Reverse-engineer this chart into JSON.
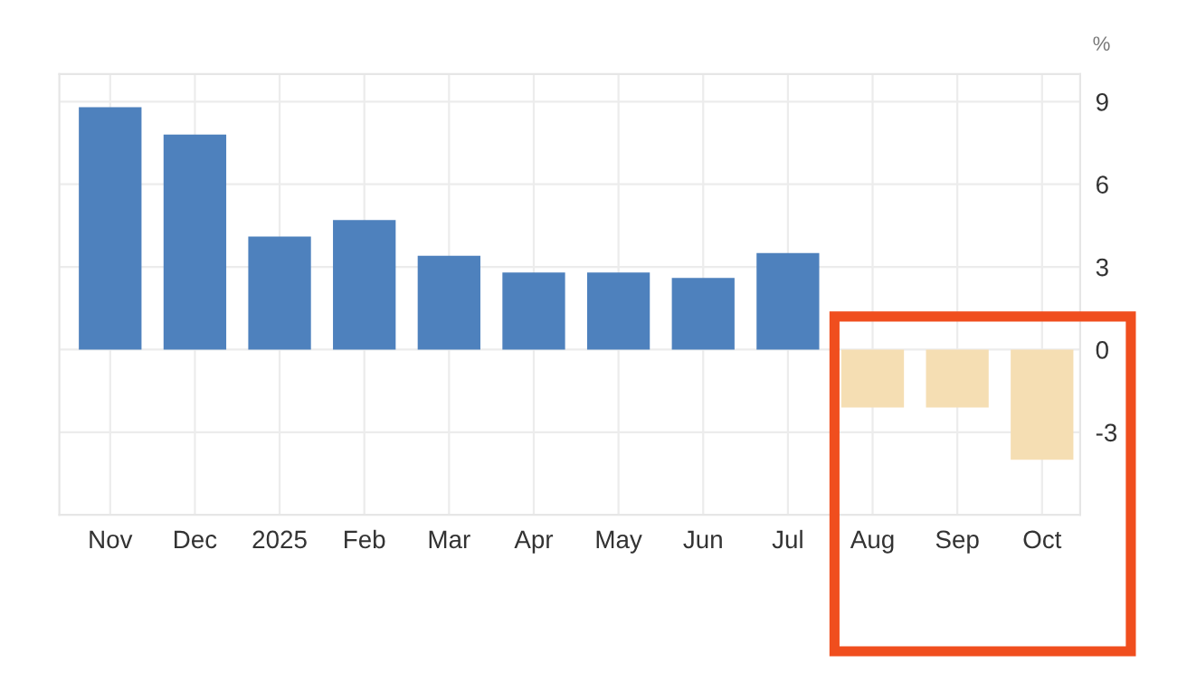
{
  "chart_data": {
    "type": "bar",
    "ylabel": "%",
    "categories": [
      "Nov",
      "Dec",
      "2025",
      "Feb",
      "Mar",
      "Apr",
      "May",
      "Jun",
      "Jul",
      "Aug",
      "Sep",
      "Oct"
    ],
    "values": [
      8.8,
      7.8,
      4.1,
      4.7,
      3.4,
      2.8,
      2.8,
      2.6,
      3.5,
      -2.1,
      -2.1,
      -4.0
    ],
    "colors": [
      "#4e81bd",
      "#4e81bd",
      "#4e81bd",
      "#4e81bd",
      "#4e81bd",
      "#4e81bd",
      "#4e81bd",
      "#4e81bd",
      "#4e81bd",
      "#f5deb3",
      "#f5deb3",
      "#f5deb3"
    ],
    "ylim": [
      -6,
      10
    ],
    "yticks": [
      {
        "value": -3,
        "label": "-3"
      },
      0,
      3,
      6,
      9
    ],
    "grid": true
  }
}
